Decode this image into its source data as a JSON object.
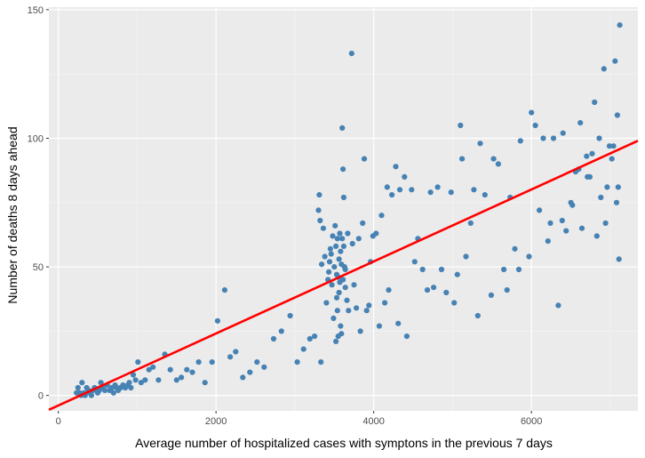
{
  "chart_data": {
    "type": "scatter",
    "title": "",
    "xlabel": "Average number of hospitalized cases with symptons in the previous 7 days",
    "ylabel": "Number of deaths 8 days ahead",
    "xlim": [
      -120,
      7350
    ],
    "ylim": [
      -6,
      151
    ],
    "x_ticks": [
      0,
      2000,
      4000,
      6000
    ],
    "y_ticks": [
      0,
      50,
      100,
      150
    ],
    "x_tick_labels": [
      "0",
      "2000",
      "4000",
      "6000"
    ],
    "y_tick_labels": [
      "0",
      "50",
      "100",
      "150"
    ],
    "grid": true,
    "legend": "none",
    "colors": {
      "points": "#4682b4",
      "fit_line": "#ff0000",
      "panel_background": "#ebebeb",
      "major_grid": "#ffffff",
      "minor_grid": "#f5f5f5"
    },
    "fit_line": {
      "type": "linear",
      "x": [
        -120,
        7350
      ],
      "y": [
        -5.6,
        99.0
      ]
    },
    "points": [
      [
        230,
        1
      ],
      [
        250,
        3
      ],
      [
        270,
        1
      ],
      [
        290,
        0
      ],
      [
        300,
        5
      ],
      [
        320,
        1
      ],
      [
        340,
        0
      ],
      [
        360,
        3
      ],
      [
        380,
        2
      ],
      [
        400,
        1
      ],
      [
        420,
        0
      ],
      [
        440,
        2
      ],
      [
        460,
        3
      ],
      [
        480,
        2
      ],
      [
        500,
        1
      ],
      [
        520,
        2
      ],
      [
        540,
        5
      ],
      [
        560,
        3
      ],
      [
        590,
        2
      ],
      [
        620,
        4
      ],
      [
        650,
        2
      ],
      [
        680,
        3
      ],
      [
        700,
        1
      ],
      [
        720,
        4
      ],
      [
        740,
        3
      ],
      [
        760,
        2
      ],
      [
        790,
        3
      ],
      [
        820,
        4
      ],
      [
        850,
        3
      ],
      [
        880,
        4
      ],
      [
        900,
        5
      ],
      [
        920,
        3
      ],
      [
        950,
        8
      ],
      [
        980,
        6
      ],
      [
        1010,
        13
      ],
      [
        1050,
        5
      ],
      [
        1100,
        6
      ],
      [
        1150,
        10
      ],
      [
        1200,
        11
      ],
      [
        1270,
        6
      ],
      [
        1350,
        16
      ],
      [
        1420,
        10
      ],
      [
        1500,
        6
      ],
      [
        1560,
        7
      ],
      [
        1630,
        10
      ],
      [
        1700,
        9
      ],
      [
        1780,
        13
      ],
      [
        1860,
        5
      ],
      [
        1950,
        13
      ],
      [
        2020,
        29
      ],
      [
        2110,
        41
      ],
      [
        2180,
        15
      ],
      [
        2250,
        17
      ],
      [
        2340,
        7
      ],
      [
        2430,
        9
      ],
      [
        2520,
        13
      ],
      [
        2610,
        11
      ],
      [
        2730,
        22
      ],
      [
        2830,
        25
      ],
      [
        2940,
        31
      ],
      [
        3030,
        13
      ],
      [
        3110,
        18
      ],
      [
        3190,
        22
      ],
      [
        3250,
        23
      ],
      [
        3300,
        72
      ],
      [
        3310,
        78
      ],
      [
        3320,
        68
      ],
      [
        3330,
        13
      ],
      [
        3340,
        51
      ],
      [
        3360,
        65
      ],
      [
        3380,
        54
      ],
      [
        3400,
        36
      ],
      [
        3420,
        45
      ],
      [
        3430,
        48
      ],
      [
        3440,
        52
      ],
      [
        3450,
        57
      ],
      [
        3460,
        55
      ],
      [
        3470,
        43
      ],
      [
        3480,
        62
      ],
      [
        3490,
        30
      ],
      [
        3500,
        50
      ],
      [
        3510,
        66
      ],
      [
        3520,
        58
      ],
      [
        3520,
        21
      ],
      [
        3530,
        38
      ],
      [
        3530,
        47
      ],
      [
        3540,
        61
      ],
      [
        3540,
        33
      ],
      [
        3550,
        46
      ],
      [
        3550,
        23
      ],
      [
        3560,
        53
      ],
      [
        3560,
        40
      ],
      [
        3570,
        63
      ],
      [
        3570,
        44
      ],
      [
        3580,
        56
      ],
      [
        3580,
        27
      ],
      [
        3590,
        51
      ],
      [
        3590,
        24
      ],
      [
        3600,
        104
      ],
      [
        3600,
        61
      ],
      [
        3610,
        88
      ],
      [
        3610,
        45
      ],
      [
        3620,
        77
      ],
      [
        3620,
        58
      ],
      [
        3630,
        50
      ],
      [
        3640,
        49
      ],
      [
        3640,
        42
      ],
      [
        3660,
        37
      ],
      [
        3670,
        63
      ],
      [
        3680,
        33
      ],
      [
        3720,
        133
      ],
      [
        3730,
        59
      ],
      [
        3750,
        43
      ],
      [
        3780,
        34
      ],
      [
        3810,
        61
      ],
      [
        3830,
        25
      ],
      [
        3860,
        67
      ],
      [
        3880,
        92
      ],
      [
        3910,
        33
      ],
      [
        3940,
        35
      ],
      [
        3960,
        52
      ],
      [
        3990,
        62
      ],
      [
        4030,
        63
      ],
      [
        4070,
        27
      ],
      [
        4100,
        70
      ],
      [
        4140,
        36
      ],
      [
        4170,
        81
      ],
      [
        4190,
        41
      ],
      [
        4230,
        78
      ],
      [
        4280,
        89
      ],
      [
        4310,
        28
      ],
      [
        4330,
        80
      ],
      [
        4390,
        85
      ],
      [
        4420,
        23
      ],
      [
        4480,
        80
      ],
      [
        4520,
        52
      ],
      [
        4560,
        61
      ],
      [
        4620,
        49
      ],
      [
        4680,
        41
      ],
      [
        4720,
        79
      ],
      [
        4760,
        42
      ],
      [
        4810,
        81
      ],
      [
        4860,
        49
      ],
      [
        4920,
        40
      ],
      [
        4980,
        79
      ],
      [
        5020,
        36
      ],
      [
        5060,
        47
      ],
      [
        5100,
        105
      ],
      [
        5120,
        92
      ],
      [
        5170,
        54
      ],
      [
        5230,
        67
      ],
      [
        5270,
        80
      ],
      [
        5320,
        31
      ],
      [
        5350,
        98
      ],
      [
        5410,
        78
      ],
      [
        5490,
        39
      ],
      [
        5520,
        92
      ],
      [
        5580,
        90
      ],
      [
        5650,
        49
      ],
      [
        5690,
        41
      ],
      [
        5730,
        77
      ],
      [
        5790,
        57
      ],
      [
        5840,
        49
      ],
      [
        5860,
        99
      ],
      [
        5970,
        54
      ],
      [
        6000,
        110
      ],
      [
        6050,
        105
      ],
      [
        6100,
        72
      ],
      [
        6150,
        100
      ],
      [
        6210,
        60
      ],
      [
        6240,
        67
      ],
      [
        6280,
        100
      ],
      [
        6340,
        35
      ],
      [
        6390,
        68
      ],
      [
        6400,
        102
      ],
      [
        6440,
        64
      ],
      [
        6500,
        75
      ],
      [
        6520,
        74
      ],
      [
        6560,
        87
      ],
      [
        6600,
        88
      ],
      [
        6620,
        106
      ],
      [
        6640,
        65
      ],
      [
        6700,
        93
      ],
      [
        6710,
        85
      ],
      [
        6740,
        85
      ],
      [
        6770,
        94
      ],
      [
        6800,
        114
      ],
      [
        6830,
        62
      ],
      [
        6860,
        100
      ],
      [
        6880,
        77
      ],
      [
        6920,
        127
      ],
      [
        6940,
        67
      ],
      [
        6960,
        81
      ],
      [
        6990,
        97
      ],
      [
        7020,
        92
      ],
      [
        7040,
        97
      ],
      [
        7060,
        130
      ],
      [
        7080,
        75
      ],
      [
        7090,
        109
      ],
      [
        7100,
        81
      ],
      [
        7110,
        53
      ],
      [
        7120,
        144
      ]
    ]
  }
}
